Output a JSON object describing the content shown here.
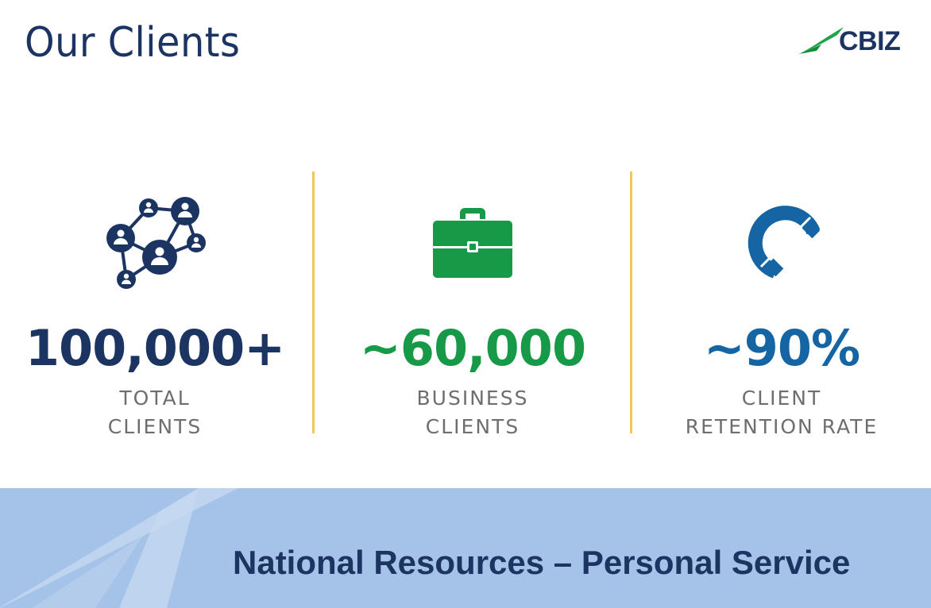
{
  "page": {
    "title": "Our Clients"
  },
  "logo": {
    "text": "CBIZ"
  },
  "stats": [
    {
      "value": "100,000+",
      "label_line1": "TOTAL",
      "label_line2": "CLIENTS",
      "color": "#1c3461",
      "icon": "people-network-icon"
    },
    {
      "value": "~60,000",
      "label_line1": "BUSINESS",
      "label_line2": "CLIENTS",
      "color": "#179a48",
      "icon": "briefcase-icon"
    },
    {
      "value": "~90%",
      "label_line1": "CLIENT",
      "label_line2": "RETENTION RATE",
      "color": "#1565a5",
      "icon": "magnet-icon"
    }
  ],
  "footer": {
    "tagline": "National Resources – Personal Service"
  },
  "colors": {
    "navy": "#1c3461",
    "green": "#179a48",
    "blue": "#1565a5",
    "divider": "#f3c858",
    "footer_bg": "#a5c2e8",
    "label_gray": "#6e6e6e"
  }
}
